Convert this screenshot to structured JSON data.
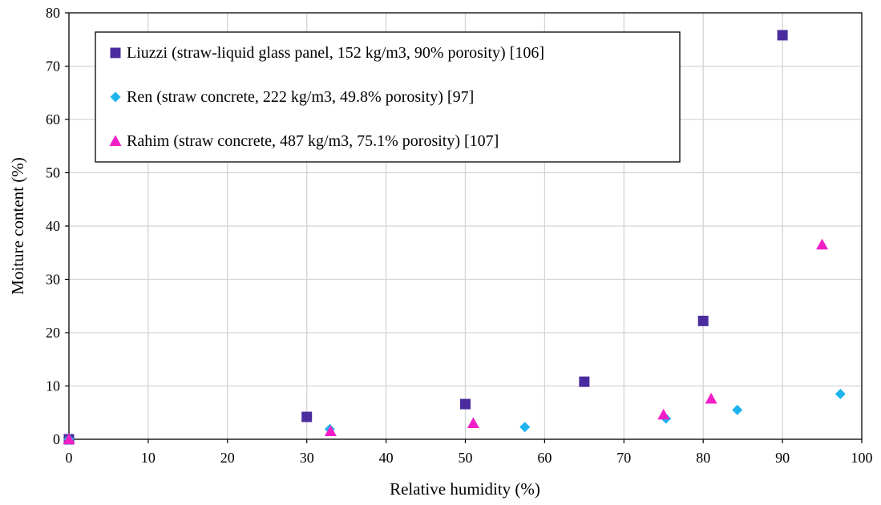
{
  "chart_data": {
    "type": "scatter",
    "title": "",
    "xlabel": "Relative humidity (%)",
    "ylabel": "Moiture content (%)",
    "xlim": [
      0,
      100
    ],
    "ylim": [
      0,
      80
    ],
    "x_ticks": [
      0,
      10,
      20,
      30,
      40,
      50,
      60,
      70,
      80,
      90,
      100
    ],
    "y_ticks": [
      0,
      10,
      20,
      30,
      40,
      50,
      60,
      70,
      80
    ],
    "grid": true,
    "legend_position": "top-left",
    "series": [
      {
        "name": "Liuzzi (straw-liquid glass panel, 152 kg/m3, 90% porosity) [106]",
        "marker": "square",
        "color": "#4B2C9E",
        "points": [
          {
            "x": 0,
            "y": 0
          },
          {
            "x": 30,
            "y": 4.2
          },
          {
            "x": 50,
            "y": 6.6
          },
          {
            "x": 65,
            "y": 10.8
          },
          {
            "x": 80,
            "y": 22.2
          },
          {
            "x": 90,
            "y": 75.8
          }
        ]
      },
      {
        "name": "Ren (straw concrete, 222 kg/m3, 49.8% porosity) [97]",
        "marker": "diamond",
        "color": "#1FB3EE",
        "points": [
          {
            "x": 0,
            "y": 0
          },
          {
            "x": 32.9,
            "y": 1.9
          },
          {
            "x": 57.5,
            "y": 2.3
          },
          {
            "x": 75.3,
            "y": 3.9
          },
          {
            "x": 84.3,
            "y": 5.5
          },
          {
            "x": 97.3,
            "y": 8.5
          }
        ]
      },
      {
        "name": "Rahim (straw concrete, 487 kg/m3, 75.1% porosity) [107]",
        "marker": "triangle",
        "color": "#F21FC8",
        "points": [
          {
            "x": 0,
            "y": 0
          },
          {
            "x": 33,
            "y": 1.5
          },
          {
            "x": 51,
            "y": 3.0
          },
          {
            "x": 75,
            "y": 4.6
          },
          {
            "x": 81,
            "y": 7.6
          },
          {
            "x": 95,
            "y": 36.5
          }
        ]
      }
    ]
  }
}
